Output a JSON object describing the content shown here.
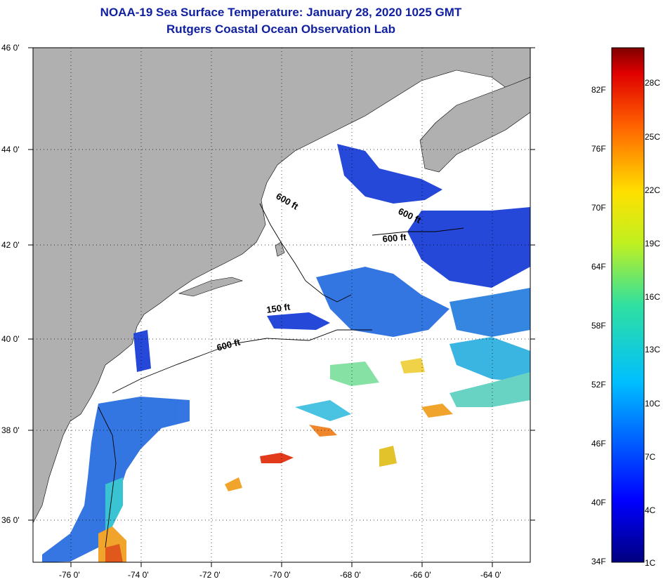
{
  "header": {
    "title": "NOAA-19 Sea Surface Temperature:  January 28, 2020 1025 GMT",
    "subtitle": "Rutgers Coastal Ocean Observation Lab"
  },
  "map": {
    "lat_ticks": [
      "46 0'",
      "44 0'",
      "42 0'",
      "40 0'",
      "38 0'",
      "36 0'"
    ],
    "lon_ticks": [
      "-76 0'",
      "-74 0'",
      "-72 0'",
      "-70 0'",
      "-68 0'",
      "-66 0'",
      "-64 0'"
    ],
    "contour_labels": [
      "600 ft",
      "600 ft",
      "600 ft",
      "150 ft",
      "600 ft"
    ],
    "colors": {
      "land": "#b0b0b0",
      "no_data": "#ffffff",
      "cold": "#1a3fd8",
      "cool": "#2a8fe0",
      "warm": "#f0a020",
      "hot": "#e03010"
    }
  },
  "colorbar": {
    "fahrenheit": [
      "82F",
      "76F",
      "70F",
      "64F",
      "58F",
      "52F",
      "46F",
      "40F",
      "34F"
    ],
    "celsius": [
      "28C",
      "25C",
      "22C",
      "19C",
      "16C",
      "13C",
      "10C",
      "7C",
      "4C",
      "1C"
    ]
  }
}
